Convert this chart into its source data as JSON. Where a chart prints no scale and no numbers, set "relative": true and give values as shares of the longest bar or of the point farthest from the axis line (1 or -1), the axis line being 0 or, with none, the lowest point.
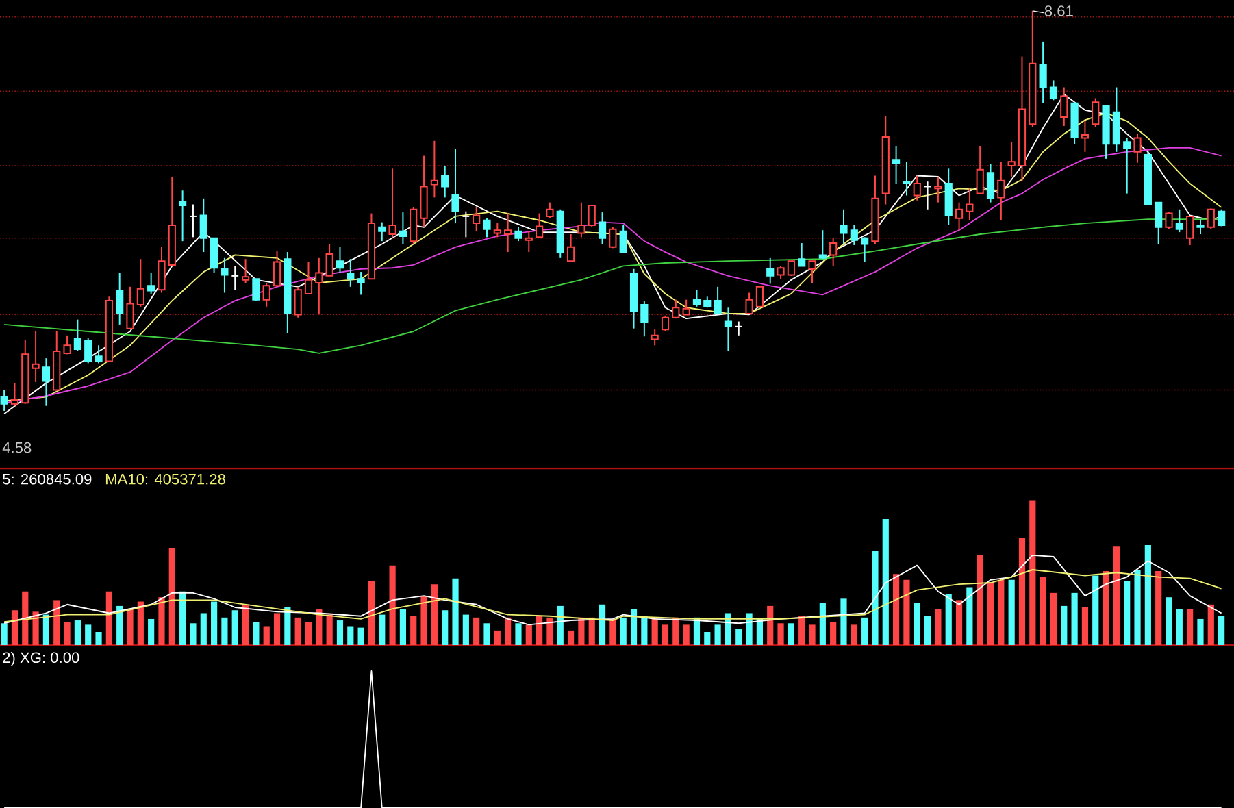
{
  "chart_data": [
    {
      "type": "candlestick",
      "categories": [
        null,
        null,
        null,
        null,
        null,
        null,
        null,
        null,
        null,
        null,
        null,
        null,
        null,
        null,
        null,
        null,
        null,
        null,
        null,
        null,
        null,
        null,
        null,
        null,
        null,
        null,
        null,
        null,
        null,
        null,
        null,
        null,
        null,
        null,
        null,
        null,
        null,
        null,
        null,
        null,
        null,
        null,
        null,
        null,
        null,
        null,
        null,
        null,
        null,
        null,
        null,
        null,
        null,
        null,
        null,
        null,
        null,
        null,
        null,
        null,
        null,
        null,
        null,
        null,
        null,
        null,
        null,
        null,
        null,
        null,
        null,
        null,
        null,
        null,
        null,
        null,
        null,
        null,
        null,
        null,
        null,
        null,
        null,
        null,
        null,
        null,
        null,
        null,
        null,
        null,
        null,
        null,
        null,
        null,
        null,
        null,
        null,
        null,
        null,
        null,
        null,
        null,
        null,
        null,
        null,
        null,
        null,
        null,
        null,
        null,
        null,
        null,
        null,
        null,
        null,
        null,
        null
      ],
      "ohlc": [
        [
          4.72,
          4.79,
          4.58,
          4.65
        ],
        [
          4.65,
          4.86,
          4.63,
          4.69
        ],
        [
          4.66,
          5.29,
          4.65,
          5.15
        ],
        [
          5.01,
          5.38,
          4.87,
          5.05
        ],
        [
          5.02,
          5.11,
          4.63,
          4.88
        ],
        [
          4.79,
          5.38,
          4.79,
          5.18
        ],
        [
          5.16,
          5.34,
          5.15,
          5.24
        ],
        [
          5.31,
          5.5,
          5.18,
          5.2
        ],
        [
          5.29,
          5.31,
          5.06,
          5.08
        ],
        [
          5.13,
          5.24,
          5.06,
          5.08
        ],
        [
          5.08,
          5.73,
          5.08,
          5.69
        ],
        [
          5.79,
          5.97,
          5.45,
          5.56
        ],
        [
          5.41,
          5.83,
          5.41,
          5.66
        ],
        [
          5.65,
          6.11,
          5.63,
          5.81
        ],
        [
          5.84,
          5.97,
          5.76,
          5.79
        ],
        [
          5.8,
          6.23,
          5.77,
          6.09
        ],
        [
          6.05,
          6.94,
          6.05,
          6.45
        ],
        [
          6.69,
          6.8,
          6.29,
          6.65
        ],
        [
          6.54,
          6.66,
          6.33,
          6.54
        ],
        [
          6.55,
          6.72,
          6.18,
          6.32
        ],
        [
          6.32,
          6.32,
          5.97,
          6.02
        ],
        [
          6.01,
          6.12,
          5.77,
          5.95
        ],
        [
          5.94,
          6.04,
          5.8,
          5.94
        ],
        [
          5.9,
          6.11,
          5.87,
          5.93
        ],
        [
          5.91,
          5.91,
          5.69,
          5.7
        ],
        [
          5.7,
          5.87,
          5.63,
          5.84
        ],
        [
          5.84,
          6.19,
          5.83,
          6.08
        ],
        [
          6.11,
          6.18,
          5.36,
          5.56
        ],
        [
          5.55,
          5.83,
          5.52,
          5.8
        ],
        [
          5.76,
          6.08,
          5.76,
          5.9
        ],
        [
          5.87,
          6.12,
          5.56,
          5.97
        ],
        [
          5.94,
          6.26,
          5.94,
          6.16
        ],
        [
          6.09,
          6.23,
          5.97,
          6.02
        ],
        [
          5.96,
          6.11,
          5.83,
          5.91
        ],
        [
          5.91,
          5.98,
          5.75,
          5.87
        ],
        [
          5.91,
          6.57,
          5.91,
          6.47
        ],
        [
          6.43,
          6.48,
          6.29,
          6.39
        ],
        [
          6.36,
          7.02,
          6.33,
          6.45
        ],
        [
          6.39,
          6.58,
          6.26,
          6.34
        ],
        [
          6.29,
          6.63,
          6.26,
          6.61
        ],
        [
          6.52,
          7.15,
          6.43,
          6.84
        ],
        [
          6.86,
          7.3,
          6.73,
          6.9
        ],
        [
          6.95,
          7.05,
          6.73,
          6.84
        ],
        [
          6.76,
          7.22,
          6.47,
          6.59
        ],
        [
          6.54,
          6.59,
          6.33,
          6.54
        ],
        [
          6.47,
          6.63,
          6.39,
          6.55
        ],
        [
          6.5,
          6.52,
          6.33,
          6.41
        ],
        [
          6.37,
          6.47,
          6.33,
          6.4
        ],
        [
          6.36,
          6.57,
          6.18,
          6.4
        ],
        [
          6.39,
          6.43,
          6.29,
          6.32
        ],
        [
          6.3,
          6.39,
          6.18,
          6.32
        ],
        [
          6.33,
          6.57,
          6.32,
          6.44
        ],
        [
          6.54,
          6.68,
          6.52,
          6.61
        ],
        [
          6.59,
          6.61,
          6.12,
          6.18
        ],
        [
          6.09,
          6.36,
          6.08,
          6.23
        ],
        [
          6.37,
          6.68,
          6.33,
          6.45
        ],
        [
          6.45,
          6.65,
          6.43,
          6.65
        ],
        [
          6.48,
          6.58,
          6.26,
          6.32
        ],
        [
          6.23,
          6.43,
          6.22,
          6.41
        ],
        [
          6.39,
          6.45,
          6.18,
          6.18
        ],
        [
          5.96,
          6.01,
          5.41,
          5.58
        ],
        [
          5.65,
          5.69,
          5.33,
          5.47
        ],
        [
          5.3,
          5.4,
          5.24,
          5.34
        ],
        [
          5.4,
          5.54,
          5.38,
          5.52
        ],
        [
          5.52,
          5.7,
          5.51,
          5.62
        ],
        [
          5.55,
          5.7,
          5.55,
          5.61
        ],
        [
          5.7,
          5.8,
          5.63,
          5.65
        ],
        [
          5.69,
          5.73,
          5.62,
          5.63
        ],
        [
          5.69,
          5.83,
          5.55,
          5.56
        ],
        [
          5.48,
          5.62,
          5.18,
          5.43
        ],
        [
          5.43,
          5.48,
          5.34,
          5.43
        ],
        [
          5.56,
          5.77,
          5.56,
          5.7
        ],
        [
          5.63,
          5.84,
          5.62,
          5.83
        ],
        [
          6.01,
          6.12,
          5.86,
          5.94
        ],
        [
          5.95,
          6.04,
          5.91,
          6.02
        ],
        [
          5.95,
          6.09,
          5.94,
          6.09
        ],
        [
          6.11,
          6.27,
          6.04,
          6.04
        ],
        [
          6.01,
          6.09,
          5.87,
          6.09
        ],
        [
          6.15,
          6.4,
          6.11,
          6.12
        ],
        [
          6.15,
          6.32,
          6.04,
          6.27
        ],
        [
          6.45,
          6.61,
          6.26,
          6.37
        ],
        [
          6.4,
          6.45,
          6.25,
          6.3
        ],
        [
          6.32,
          6.33,
          6.08,
          6.26
        ],
        [
          6.29,
          6.95,
          6.26,
          6.72
        ],
        [
          6.77,
          7.55,
          6.66,
          7.34
        ],
        [
          7.11,
          7.25,
          6.87,
          7.07
        ],
        [
          6.89,
          7.09,
          6.75,
          6.87
        ],
        [
          6.75,
          6.95,
          6.7,
          6.87
        ],
        [
          6.84,
          6.89,
          6.61,
          6.84
        ],
        [
          6.82,
          6.94,
          6.68,
          6.84
        ],
        [
          6.87,
          7.02,
          6.45,
          6.55
        ],
        [
          6.52,
          6.68,
          6.4,
          6.61
        ],
        [
          6.59,
          6.82,
          6.5,
          6.66
        ],
        [
          6.77,
          7.25,
          6.77,
          7.01
        ],
        [
          6.98,
          7.07,
          6.68,
          6.72
        ],
        [
          6.73,
          7.09,
          6.5,
          6.9
        ],
        [
          7.05,
          7.29,
          6.94,
          7.09
        ],
        [
          7.05,
          8.15,
          6.89,
          7.62
        ],
        [
          7.47,
          8.61,
          7.44,
          8.08
        ],
        [
          8.07,
          8.3,
          7.68,
          7.84
        ],
        [
          7.84,
          7.91,
          7.71,
          7.73
        ],
        [
          7.54,
          7.84,
          7.45,
          7.75
        ],
        [
          7.68,
          7.69,
          7.27,
          7.34
        ],
        [
          7.33,
          7.5,
          7.19,
          7.36
        ],
        [
          7.47,
          7.73,
          7.44,
          7.69
        ],
        [
          7.65,
          7.66,
          7.12,
          7.27
        ],
        [
          7.59,
          7.84,
          7.19,
          7.27
        ],
        [
          7.29,
          7.33,
          6.77,
          7.23
        ],
        [
          7.19,
          7.37,
          7.08,
          7.33
        ],
        [
          7.16,
          7.19,
          6.66,
          6.66
        ],
        [
          6.68,
          6.68,
          6.26,
          6.43
        ],
        [
          6.43,
          6.58,
          6.41,
          6.57
        ],
        [
          6.47,
          6.61,
          6.38,
          6.41
        ],
        [
          6.32,
          6.54,
          6.25,
          6.54
        ],
        [
          6.45,
          6.51,
          6.36,
          6.43
        ],
        [
          6.43,
          6.62,
          6.41,
          6.61
        ],
        [
          6.59,
          6.61,
          6.44,
          6.45
        ]
      ],
      "colors": [
        "#54fcfc",
        "#ff4646",
        "#ff4646",
        "#ff4646",
        "#54fcfc",
        "#ff4646",
        "#ff4646",
        "#54fcfc",
        "#54fcfc",
        "#54fcfc",
        "#ff4646",
        "#54fcfc",
        "#ff4646",
        "#ff4646",
        "#54fcfc",
        "#ff4646",
        "#ff4646",
        "#54fcfc",
        "#ffffff",
        "#54fcfc",
        "#54fcfc",
        "#54fcfc",
        "#ffffff",
        "#ff4646",
        "#54fcfc",
        "#ff4646",
        "#ff4646",
        "#54fcfc",
        "#ff4646",
        "#ff4646",
        "#ff4646",
        "#ff4646",
        "#54fcfc",
        "#54fcfc",
        "#54fcfc",
        "#ff4646",
        "#54fcfc",
        "#ff4646",
        "#54fcfc",
        "#ff4646",
        "#ff4646",
        "#ff4646",
        "#54fcfc",
        "#54fcfc",
        "#ffffff",
        "#ff4646",
        "#54fcfc",
        "#ff4646",
        "#ff4646",
        "#54fcfc",
        "#ff4646",
        "#ff4646",
        "#ff4646",
        "#54fcfc",
        "#ff4646",
        "#ff4646",
        "#ff4646",
        "#54fcfc",
        "#ff4646",
        "#54fcfc",
        "#54fcfc",
        "#54fcfc",
        "#ff4646",
        "#ff4646",
        "#ff4646",
        "#ff4646",
        "#54fcfc",
        "#54fcfc",
        "#54fcfc",
        "#54fcfc",
        "#ffffff",
        "#ff4646",
        "#ff4646",
        "#54fcfc",
        "#ff4646",
        "#ff4646",
        "#54fcfc",
        "#ff4646",
        "#54fcfc",
        "#ff4646",
        "#54fcfc",
        "#54fcfc",
        "#54fcfc",
        "#ff4646",
        "#ff4646",
        "#54fcfc",
        "#54fcfc",
        "#ff4646",
        "#ffffff",
        "#ff4646",
        "#54fcfc",
        "#ff4646",
        "#ff4646",
        "#ff4646",
        "#54fcfc",
        "#ff4646",
        "#ff4646",
        "#ff4646",
        "#ff4646",
        "#54fcfc",
        "#54fcfc",
        "#ff4646",
        "#54fcfc",
        "#ff4646",
        "#ff4646",
        "#54fcfc",
        "#54fcfc",
        "#54fcfc",
        "#ff4646",
        "#54fcfc",
        "#54fcfc",
        "#ff4646",
        "#54fcfc",
        "#ff4646",
        "#54fcfc",
        "#ff4646",
        "#54fcfc"
      ],
      "series": [
        {
          "type": "line",
          "color": "#ffffff",
          "values": [
            4.55,
            null,
            null,
            null,
            4.86,
            null,
            null,
            null,
            5.11,
            null,
            null,
            null,
            5.38,
            null,
            null,
            null,
            6.04,
            null,
            null,
            6.38,
            6.29,
            null,
            null,
            null,
            5.9,
            null,
            null,
            null,
            5.83,
            null,
            null,
            null,
            6.04,
            null,
            null,
            null,
            6.26,
            null,
            null,
            6.45,
            6.43,
            null,
            null,
            6.75,
            null,
            null,
            null,
            6.54,
            null,
            null,
            null,
            6.38,
            null,
            null,
            null,
            6.38,
            null,
            null,
            null,
            6.36,
            null,
            6.04,
            null,
            5.62,
            null,
            5.51,
            null,
            null,
            null,
            5.56,
            null,
            5.55,
            null,
            null,
            null,
            5.9,
            null,
            null,
            6.08,
            6.19,
            null,
            null,
            null,
            6.4,
            null,
            6.68,
            null,
            6.95,
            null,
            6.94,
            null,
            6.75,
            null,
            6.84,
            null,
            6.77,
            null,
            7.05,
            null,
            7.43,
            null,
            7.77,
            null,
            7.61,
            null,
            7.57,
            null,
            7.37,
            null,
            7.19,
            null,
            6.87,
            null,
            6.55,
            null,
            6.5,
            6.54
          ]
        },
        {
          "type": "line",
          "color": "#f0f070",
          "values": [
            4.68,
            null,
            null,
            null,
            4.72,
            null,
            null,
            null,
            4.94,
            null,
            null,
            null,
            5.24,
            null,
            null,
            null,
            5.69,
            null,
            null,
            5.98,
            null,
            null,
            6.15,
            null,
            null,
            null,
            6.12,
            null,
            null,
            null,
            5.87,
            null,
            null,
            null,
            5.91,
            null,
            null,
            6.12,
            null,
            6.26,
            null,
            null,
            null,
            6.54,
            null,
            null,
            null,
            6.59,
            null,
            null,
            null,
            6.5,
            null,
            null,
            null,
            6.38,
            null,
            null,
            null,
            6.36,
            null,
            5.96,
            null,
            5.76,
            null,
            5.62,
            null,
            null,
            null,
            5.56,
            null,
            5.56,
            null,
            null,
            null,
            5.76,
            null,
            null,
            null,
            6.18,
            null,
            null,
            null,
            6.5,
            null,
            null,
            null,
            6.73,
            null,
            null,
            null,
            6.82,
            null,
            null,
            null,
            6.8,
            null,
            6.91,
            null,
            7.19,
            null,
            7.37,
            null,
            7.51,
            null,
            7.58,
            null,
            7.5,
            null,
            7.33,
            null,
            7.09,
            null,
            6.87,
            null,
            null,
            6.63
          ]
        },
        {
          "type": "line",
          "color": "#e040e0",
          "values": [
            4.66,
            null,
            null,
            null,
            4.73,
            null,
            null,
            null,
            4.83,
            null,
            null,
            null,
            4.97,
            null,
            null,
            null,
            5.29,
            null,
            null,
            5.52,
            null,
            null,
            5.69,
            null,
            null,
            null,
            5.83,
            null,
            null,
            null,
            5.94,
            null,
            null,
            null,
            6.01,
            null,
            null,
            6.02,
            null,
            6.05,
            null,
            null,
            null,
            6.23,
            null,
            null,
            null,
            6.34,
            null,
            null,
            null,
            6.4,
            null,
            null,
            null,
            6.44,
            null,
            6.48,
            null,
            6.47,
            null,
            6.29,
            null,
            6.18,
            null,
            6.08,
            null,
            null,
            null,
            5.94,
            null,
            null,
            null,
            5.84,
            null,
            null,
            null,
            null,
            5.75,
            null,
            null,
            null,
            null,
            5.98,
            null,
            null,
            null,
            6.22,
            null,
            null,
            null,
            6.4,
            null,
            null,
            null,
            6.68,
            null,
            6.77,
            null,
            6.91,
            null,
            7.02,
            null,
            7.12,
            null,
            null,
            null,
            7.19,
            null,
            null,
            null,
            7.23,
            null,
            7.23,
            null,
            null,
            7.15
          ]
        },
        {
          "type": "line",
          "color": "#40d040",
          "values": [
            5.45,
            null,
            null,
            null,
            null,
            null,
            null,
            null,
            5.38,
            null,
            null,
            null,
            null,
            null,
            null,
            null,
            5.31,
            null,
            null,
            null,
            null,
            null,
            null,
            null,
            5.24,
            null,
            null,
            null,
            5.2,
            null,
            5.16,
            null,
            null,
            null,
            5.24,
            null,
            null,
            null,
            null,
            5.38,
            null,
            null,
            null,
            5.59,
            null,
            null,
            null,
            5.7,
            null,
            null,
            null,
            5.8,
            null,
            null,
            null,
            5.9,
            null,
            null,
            null,
            6.04,
            null,
            null,
            null,
            6.07,
            null,
            null,
            null,
            null,
            null,
            6.09,
            null,
            null,
            null,
            null,
            null,
            null,
            null,
            null,
            6.11,
            null,
            null,
            null,
            null,
            6.19,
            null,
            null,
            null,
            6.26,
            null,
            null,
            null,
            null,
            null,
            6.36,
            null,
            null,
            null,
            null,
            null,
            6.43,
            null,
            null,
            null,
            6.47,
            null,
            null,
            null,
            null,
            null,
            6.51,
            null,
            null,
            null,
            null,
            null,
            null,
            6.51
          ]
        }
      ],
      "ylim": [
        4.0,
        8.72
      ],
      "yticks": [
        {
          "value": 4.79,
          "label": null
        },
        {
          "value": 5.55,
          "label": null
        },
        {
          "value": 6.32,
          "label": null
        },
        {
          "value": 7.05,
          "label": null
        },
        {
          "value": 7.8,
          "label": null
        },
        {
          "value": 8.55,
          "label": null
        }
      ],
      "grid": "y",
      "annotations": [
        "8.61",
        "4.58"
      ]
    },
    {
      "type": "bar",
      "relative": true,
      "legend": "top left",
      "categories": [
        null,
        null,
        null,
        null,
        null,
        null,
        null,
        null,
        null,
        null,
        null,
        null,
        null,
        null,
        null,
        null,
        null,
        null,
        null,
        null,
        null,
        null,
        null,
        null,
        null,
        null,
        null,
        null,
        null,
        null,
        null,
        null,
        null,
        null,
        null,
        null,
        null,
        null,
        null,
        null,
        null,
        null,
        null,
        null,
        null,
        null,
        null,
        null,
        null,
        null,
        null,
        null,
        null,
        null,
        null,
        null,
        null,
        null,
        null,
        null,
        null,
        null,
        null,
        null,
        null,
        null,
        null,
        null,
        null,
        null,
        null,
        null,
        null,
        null,
        null,
        null,
        null,
        null,
        null,
        null,
        null,
        null,
        null,
        null,
        null,
        null,
        null,
        null,
        null,
        null,
        null,
        null,
        null,
        null,
        null,
        null,
        null,
        null,
        null,
        null,
        null,
        null,
        null,
        null,
        null,
        null,
        null,
        null,
        null,
        null,
        null,
        null,
        null,
        null,
        null,
        null,
        null
      ],
      "series": [
        {
          "type": "bar",
          "values": [
            0.15,
            0.24,
            0.37,
            0.23,
            0.21,
            0.31,
            0.16,
            0.17,
            0.14,
            0.09,
            0.37,
            0.27,
            0.25,
            0.3,
            0.18,
            0.33,
            0.67,
            0.37,
            0.15,
            0.22,
            0.3,
            0.19,
            0.24,
            0.28,
            0.16,
            0.13,
            0.22,
            0.26,
            0.19,
            0.16,
            0.25,
            0.21,
            0.17,
            0.13,
            0.12,
            0.44,
            0.21,
            0.55,
            0.25,
            0.2,
            0.34,
            0.42,
            0.24,
            0.46,
            0.21,
            0.19,
            0.15,
            0.1,
            0.19,
            0.15,
            0.14,
            0.2,
            0.19,
            0.27,
            0.1,
            0.19,
            0.19,
            0.28,
            0.18,
            0.19,
            0.25,
            0.2,
            0.19,
            0.14,
            0.19,
            0.14,
            0.19,
            0.09,
            0.14,
            0.22,
            0.11,
            0.22,
            0.18,
            0.27,
            0.15,
            0.15,
            0.2,
            0.14,
            0.29,
            0.16,
            0.32,
            0.14,
            0.19,
            0.65,
            0.87,
            0.49,
            0.45,
            0.29,
            0.2,
            0.25,
            0.35,
            0.31,
            0.4,
            0.62,
            0.43,
            0.45,
            0.45,
            0.74,
            1,
            0.47,
            0.36,
            0.27,
            0.36,
            0.26,
            0.48,
            0.51,
            0.68,
            0.44,
            0.52,
            0.69,
            0.51,
            0.33,
            0.25,
            0.25,
            0.18,
            0.28,
            0.2
          ],
          "colors": [
            "#54fcfc",
            "#ff4646",
            "#ff4646",
            "#ff4646",
            "#54fcfc",
            "#ff4646",
            "#ff4646",
            "#54fcfc",
            "#54fcfc",
            "#54fcfc",
            "#ff4646",
            "#54fcfc",
            "#ff4646",
            "#ff4646",
            "#54fcfc",
            "#ff4646",
            "#ff4646",
            "#54fcfc",
            "#54fcfc",
            "#54fcfc",
            "#54fcfc",
            "#54fcfc",
            "#54fcfc",
            "#ff4646",
            "#54fcfc",
            "#ff4646",
            "#ff4646",
            "#54fcfc",
            "#ff4646",
            "#ff4646",
            "#ff4646",
            "#ff4646",
            "#54fcfc",
            "#54fcfc",
            "#54fcfc",
            "#ff4646",
            "#54fcfc",
            "#ff4646",
            "#54fcfc",
            "#ff4646",
            "#ff4646",
            "#ff4646",
            "#54fcfc",
            "#54fcfc",
            "#54fcfc",
            "#ff4646",
            "#54fcfc",
            "#ff4646",
            "#ff4646",
            "#54fcfc",
            "#ff4646",
            "#ff4646",
            "#ff4646",
            "#54fcfc",
            "#ff4646",
            "#ff4646",
            "#ff4646",
            "#54fcfc",
            "#ff4646",
            "#54fcfc",
            "#54fcfc",
            "#54fcfc",
            "#ff4646",
            "#ff4646",
            "#ff4646",
            "#ff4646",
            "#54fcfc",
            "#54fcfc",
            "#54fcfc",
            "#54fcfc",
            "#54fcfc",
            "#54fcfc",
            "#54fcfc",
            "#ff4646",
            "#ff4646",
            "#54fcfc",
            "#ff4646",
            "#ff4646",
            "#54fcfc",
            "#ff4646",
            "#54fcfc",
            "#ff4646",
            "#54fcfc",
            "#54fcfc",
            "#54fcfc",
            "#ff4646",
            "#ff4646",
            "#54fcfc",
            "#54fcfc",
            "#ff4646",
            "#54fcfc",
            "#ff4646",
            "#54fcfc",
            "#ff4646",
            "#ff4646",
            "#ff4646",
            "#54fcfc",
            "#ff4646",
            "#ff4646",
            "#ff4646",
            "#ff4646",
            "#54fcfc",
            "#54fcfc",
            "#ff4646",
            "#54fcfc",
            "#ff4646",
            "#ff4646",
            "#54fcfc",
            "#54fcfc",
            "#54fcfc",
            "#ff4646",
            "#54fcfc",
            "#54fcfc",
            "#ff4646",
            "#54fcfc",
            "#ff4646",
            "#54fcfc"
          ]
        },
        {
          "type": "line",
          "name": "5: 260845.09",
          "color": "#ffffff",
          "values": [
            0.15,
            null,
            null,
            null,
            0.22,
            null,
            0.28,
            null,
            null,
            null,
            0.22,
            null,
            null,
            null,
            0.28,
            null,
            0.36,
            null,
            0.36,
            null,
            0.32,
            null,
            0.26,
            null,
            null,
            null,
            0.23,
            null,
            null,
            null,
            0.22,
            null,
            null,
            null,
            0.2,
            null,
            null,
            0.31,
            null,
            null,
            0.34,
            null,
            0.31,
            null,
            null,
            0.28,
            null,
            null,
            0.18,
            null,
            0.14,
            null,
            null,
            null,
            0.17,
            null,
            null,
            null,
            0.18,
            0.21,
            null,
            null,
            0.18,
            null,
            null,
            null,
            0.17,
            null,
            null,
            null,
            0.15,
            null,
            null,
            null,
            0.18,
            null,
            null,
            null,
            0.2,
            null,
            null,
            null,
            0.22,
            null,
            0.43,
            null,
            null,
            0.55,
            null,
            0.37,
            null,
            0.28,
            null,
            null,
            0.45,
            null,
            0.47,
            null,
            0.62,
            null,
            0.61,
            null,
            null,
            0.34,
            null,
            0.42,
            null,
            0.47,
            null,
            0.58,
            null,
            0.5,
            null,
            0.34,
            null,
            null,
            0.22
          ]
        },
        {
          "type": "line",
          "name": "MA10: 405371.28",
          "color": "#f0f070",
          "values": [
            0.16,
            null,
            null,
            null,
            null,
            null,
            0.21,
            null,
            null,
            null,
            0.21,
            null,
            null,
            null,
            null,
            null,
            0.31,
            null,
            null,
            null,
            0.31,
            null,
            null,
            null,
            null,
            null,
            0.25,
            null,
            null,
            null,
            0.21,
            null,
            null,
            null,
            0.18,
            null,
            null,
            0.25,
            null,
            null,
            null,
            null,
            0.32,
            null,
            null,
            null,
            null,
            null,
            0.21,
            null,
            null,
            null,
            0.2,
            null,
            null,
            null,
            null,
            null,
            0.17,
            0.2,
            null,
            null,
            null,
            null,
            null,
            null,
            0.18,
            null,
            null,
            null,
            null,
            null,
            null,
            null,
            0.18,
            null,
            null,
            null,
            null,
            null,
            null,
            null,
            0.21,
            null,
            0.28,
            null,
            null,
            0.38,
            null,
            null,
            null,
            0.42,
            null,
            null,
            0.43,
            null,
            0.47,
            null,
            0.52,
            null,
            null,
            null,
            null,
            0.48,
            null,
            null,
            0.5,
            null,
            null,
            null,
            0.47,
            null,
            null,
            0.46,
            null,
            null,
            0.39
          ]
        }
      ]
    },
    {
      "type": "line",
      "relative": true,
      "legend": "top left",
      "categories": [
        null,
        null,
        null,
        null,
        null,
        null,
        null,
        null,
        null,
        null,
        null,
        null,
        null,
        null,
        null,
        null,
        null,
        null,
        null,
        null,
        null,
        null,
        null,
        null,
        null,
        null,
        null,
        null,
        null,
        null,
        null,
        null,
        null,
        null,
        null,
        null,
        null,
        null,
        null,
        null,
        null,
        null,
        null,
        null,
        null,
        null,
        null,
        null,
        null,
        null,
        null,
        null,
        null,
        null,
        null,
        null,
        null,
        null,
        null,
        null,
        null,
        null,
        null,
        null,
        null,
        null,
        null,
        null,
        null,
        null,
        null,
        null,
        null,
        null,
        null,
        null,
        null,
        null,
        null,
        null,
        null,
        null,
        null,
        null,
        null,
        null,
        null,
        null,
        null,
        null,
        null,
        null,
        null,
        null,
        null,
        null,
        null,
        null,
        null,
        null,
        null,
        null,
        null,
        null,
        null,
        null,
        null,
        null,
        null,
        null,
        null,
        null,
        null,
        null,
        null,
        null,
        null
      ],
      "series": [
        {
          "name": "2) XG: 0.00",
          "color": "#ffffff",
          "values": [
            0,
            0,
            0,
            0,
            0,
            0,
            0,
            0,
            0,
            0,
            0,
            0,
            0,
            0,
            0,
            0,
            0,
            0,
            0,
            0,
            0,
            0,
            0,
            0,
            0,
            0,
            0,
            0,
            0,
            0,
            0,
            0,
            0,
            0,
            0,
            1,
            0,
            0,
            0,
            0,
            0,
            0,
            0,
            0,
            0,
            0,
            0,
            0,
            0,
            0,
            0,
            0,
            0,
            0,
            0,
            0,
            0,
            0,
            0,
            0,
            0,
            0,
            0,
            0,
            0,
            0,
            0,
            0,
            0,
            0,
            0,
            0,
            0,
            0,
            0,
            0,
            0,
            0,
            0,
            0,
            0,
            0,
            0,
            0,
            0,
            0,
            0,
            0,
            0,
            0,
            0,
            0,
            0,
            0,
            0,
            0,
            0,
            0,
            0,
            0,
            0,
            0,
            0,
            0,
            0,
            0,
            0,
            0,
            0,
            0,
            0,
            0,
            0,
            0,
            0,
            0,
            0
          ]
        }
      ]
    }
  ]
}
